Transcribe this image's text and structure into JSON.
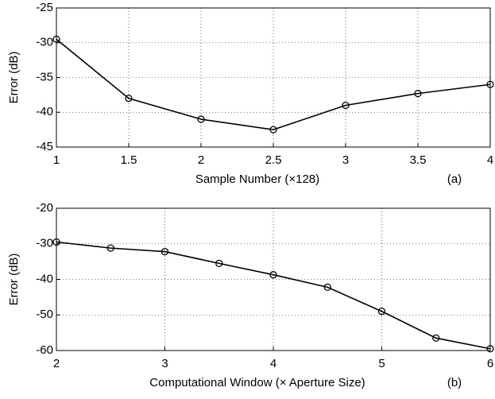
{
  "chart_data": [
    {
      "type": "line",
      "xlabel": "Sample Number (×128)",
      "ylabel": "Error (dB)",
      "annotation": "(a)",
      "x": [
        1,
        1.5,
        2,
        2.5,
        3,
        3.5,
        4
      ],
      "series": [
        {
          "color": "#000000",
          "values": [
            -29.5,
            -38,
            -41,
            -42.5,
            -39,
            -37.3,
            -36
          ]
        }
      ],
      "xlim": [
        1,
        4
      ],
      "xticks": [
        1,
        1.5,
        2,
        2.5,
        3,
        3.5,
        4
      ],
      "ylim": [
        -45,
        -25
      ],
      "yticks": [
        -45,
        -40,
        -35,
        -30,
        -25
      ],
      "grid": true
    },
    {
      "type": "line",
      "xlabel": "Computational Window (× Aperture Size)",
      "ylabel": "Error (dB)",
      "annotation": "(b)",
      "x": [
        2,
        2.5,
        3,
        3.5,
        4,
        4.5,
        5,
        5.5,
        6
      ],
      "series": [
        {
          "color": "#000000",
          "values": [
            -29.5,
            -31.2,
            -32.2,
            -35.5,
            -38.7,
            -42.2,
            -49,
            -56.5,
            -59.5
          ]
        }
      ],
      "xlim": [
        2,
        6
      ],
      "xticks": [
        2,
        3,
        4,
        5,
        6
      ],
      "ylim": [
        -60,
        -20
      ],
      "yticks": [
        -60,
        -50,
        -40,
        -30,
        -20
      ],
      "grid": true
    }
  ]
}
